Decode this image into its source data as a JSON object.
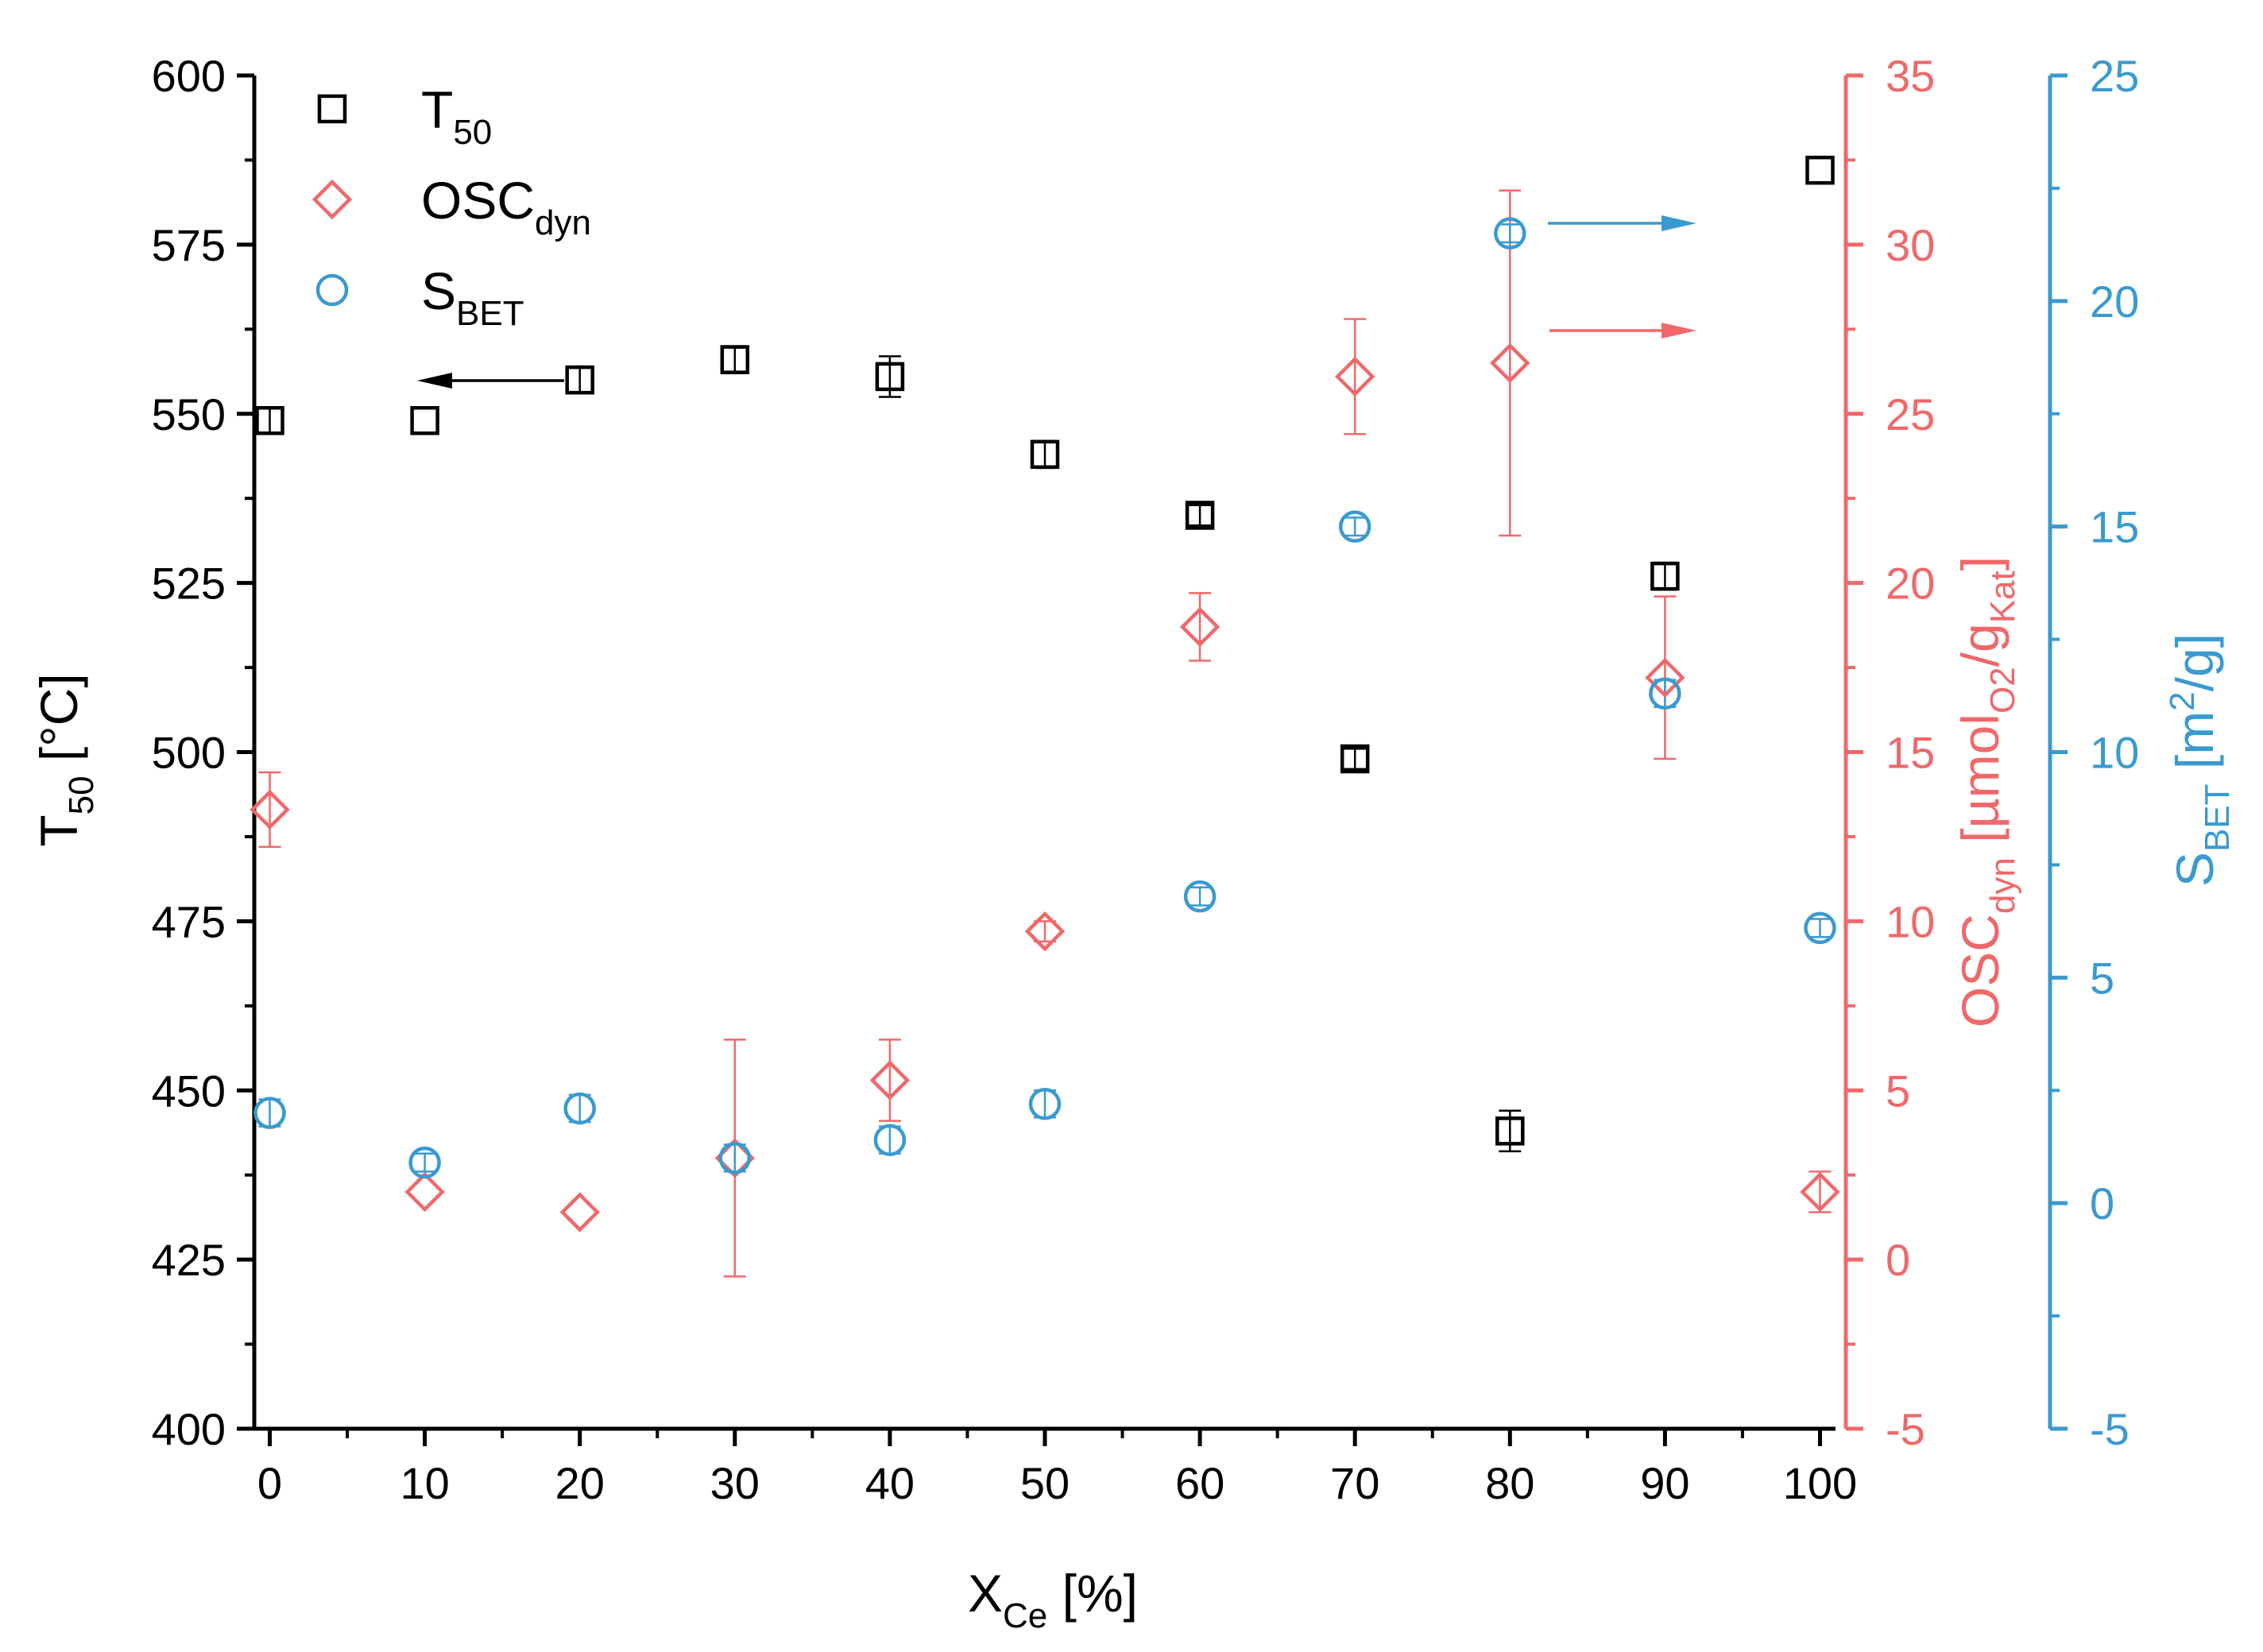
{
  "chart_data": {
    "type": "scatter",
    "x": [
      0,
      10,
      20,
      30,
      40,
      50,
      60,
      70,
      80,
      90,
      100
    ],
    "xlim": [
      -1,
      101
    ],
    "x_ticks": [
      "0",
      "10",
      "20",
      "30",
      "40",
      "50",
      "60",
      "70",
      "80",
      "90",
      "100"
    ],
    "xlabel": {
      "main": "X",
      "sub": "Ce",
      "tail": " [%]"
    },
    "axes": {
      "left": {
        "label": {
          "main": "T",
          "sub": "50",
          "tail": " [°C]"
        },
        "ylim": [
          400,
          600
        ],
        "ticks": [
          "400",
          "425",
          "450",
          "475",
          "500",
          "525",
          "550",
          "575",
          "600"
        ],
        "color": "#000000"
      },
      "right1": {
        "label": {
          "a": "OSC",
          "a_sub": "dyn",
          "b": " [µmol",
          "b_sub": "O2",
          "c": "/g",
          "c_sub": "Kat",
          "d": "]"
        },
        "ylim": [
          -5,
          35
        ],
        "ticks": [
          "-5",
          "0",
          "5",
          "10",
          "15",
          "20",
          "25",
          "30",
          "35"
        ],
        "color": "#f0686a"
      },
      "right2": {
        "label": {
          "a": "S",
          "a_sub": "BET",
          "b": " [m",
          "b_sup": "2",
          "c": "/g]"
        },
        "ylim": [
          -5,
          25
        ],
        "ticks": [
          "-5",
          "0",
          "5",
          "10",
          "15",
          "20",
          "25"
        ],
        "color": "#3a9ad0"
      }
    },
    "series": [
      {
        "name": {
          "main": "T",
          "sub": "50"
        },
        "axis": "left",
        "marker": "square",
        "color": "#000000",
        "values": [
          549,
          549,
          555,
          558,
          555.5,
          544,
          535,
          499,
          444,
          526,
          586
        ],
        "errors": [
          2,
          0,
          2,
          2,
          3,
          2,
          1.5,
          1.5,
          3,
          2,
          0
        ]
      },
      {
        "name": {
          "main": "OSC",
          "sub": "dyn"
        },
        "axis": "right1",
        "marker": "diamond",
        "color": "#f0686a",
        "values": [
          13.3,
          2.0,
          1.4,
          3.0,
          5.3,
          9.7,
          18.7,
          26.1,
          26.5,
          17.2,
          2.0
        ],
        "errors": [
          1.1,
          0,
          0,
          3.5,
          1.2,
          0.3,
          1.0,
          1.7,
          5.1,
          2.4,
          0.6
        ]
      },
      {
        "name": {
          "main": "S",
          "sub": "BET"
        },
        "axis": "right2",
        "marker": "circle",
        "color": "#3a9ad0",
        "values": [
          2.0,
          0.9,
          2.1,
          1.0,
          1.4,
          2.2,
          6.8,
          15.0,
          21.5,
          11.3,
          6.1
        ],
        "errors": [
          0.3,
          0.2,
          0.3,
          0.3,
          0.3,
          0.3,
          0.2,
          0.2,
          0.2,
          0.3,
          0.2
        ]
      }
    ],
    "arrows": [
      {
        "series": 0,
        "direction": "left"
      },
      {
        "series": 2,
        "direction": "right"
      },
      {
        "series": 1,
        "direction": "right"
      }
    ],
    "legend_position": "top-left",
    "grid": false
  }
}
